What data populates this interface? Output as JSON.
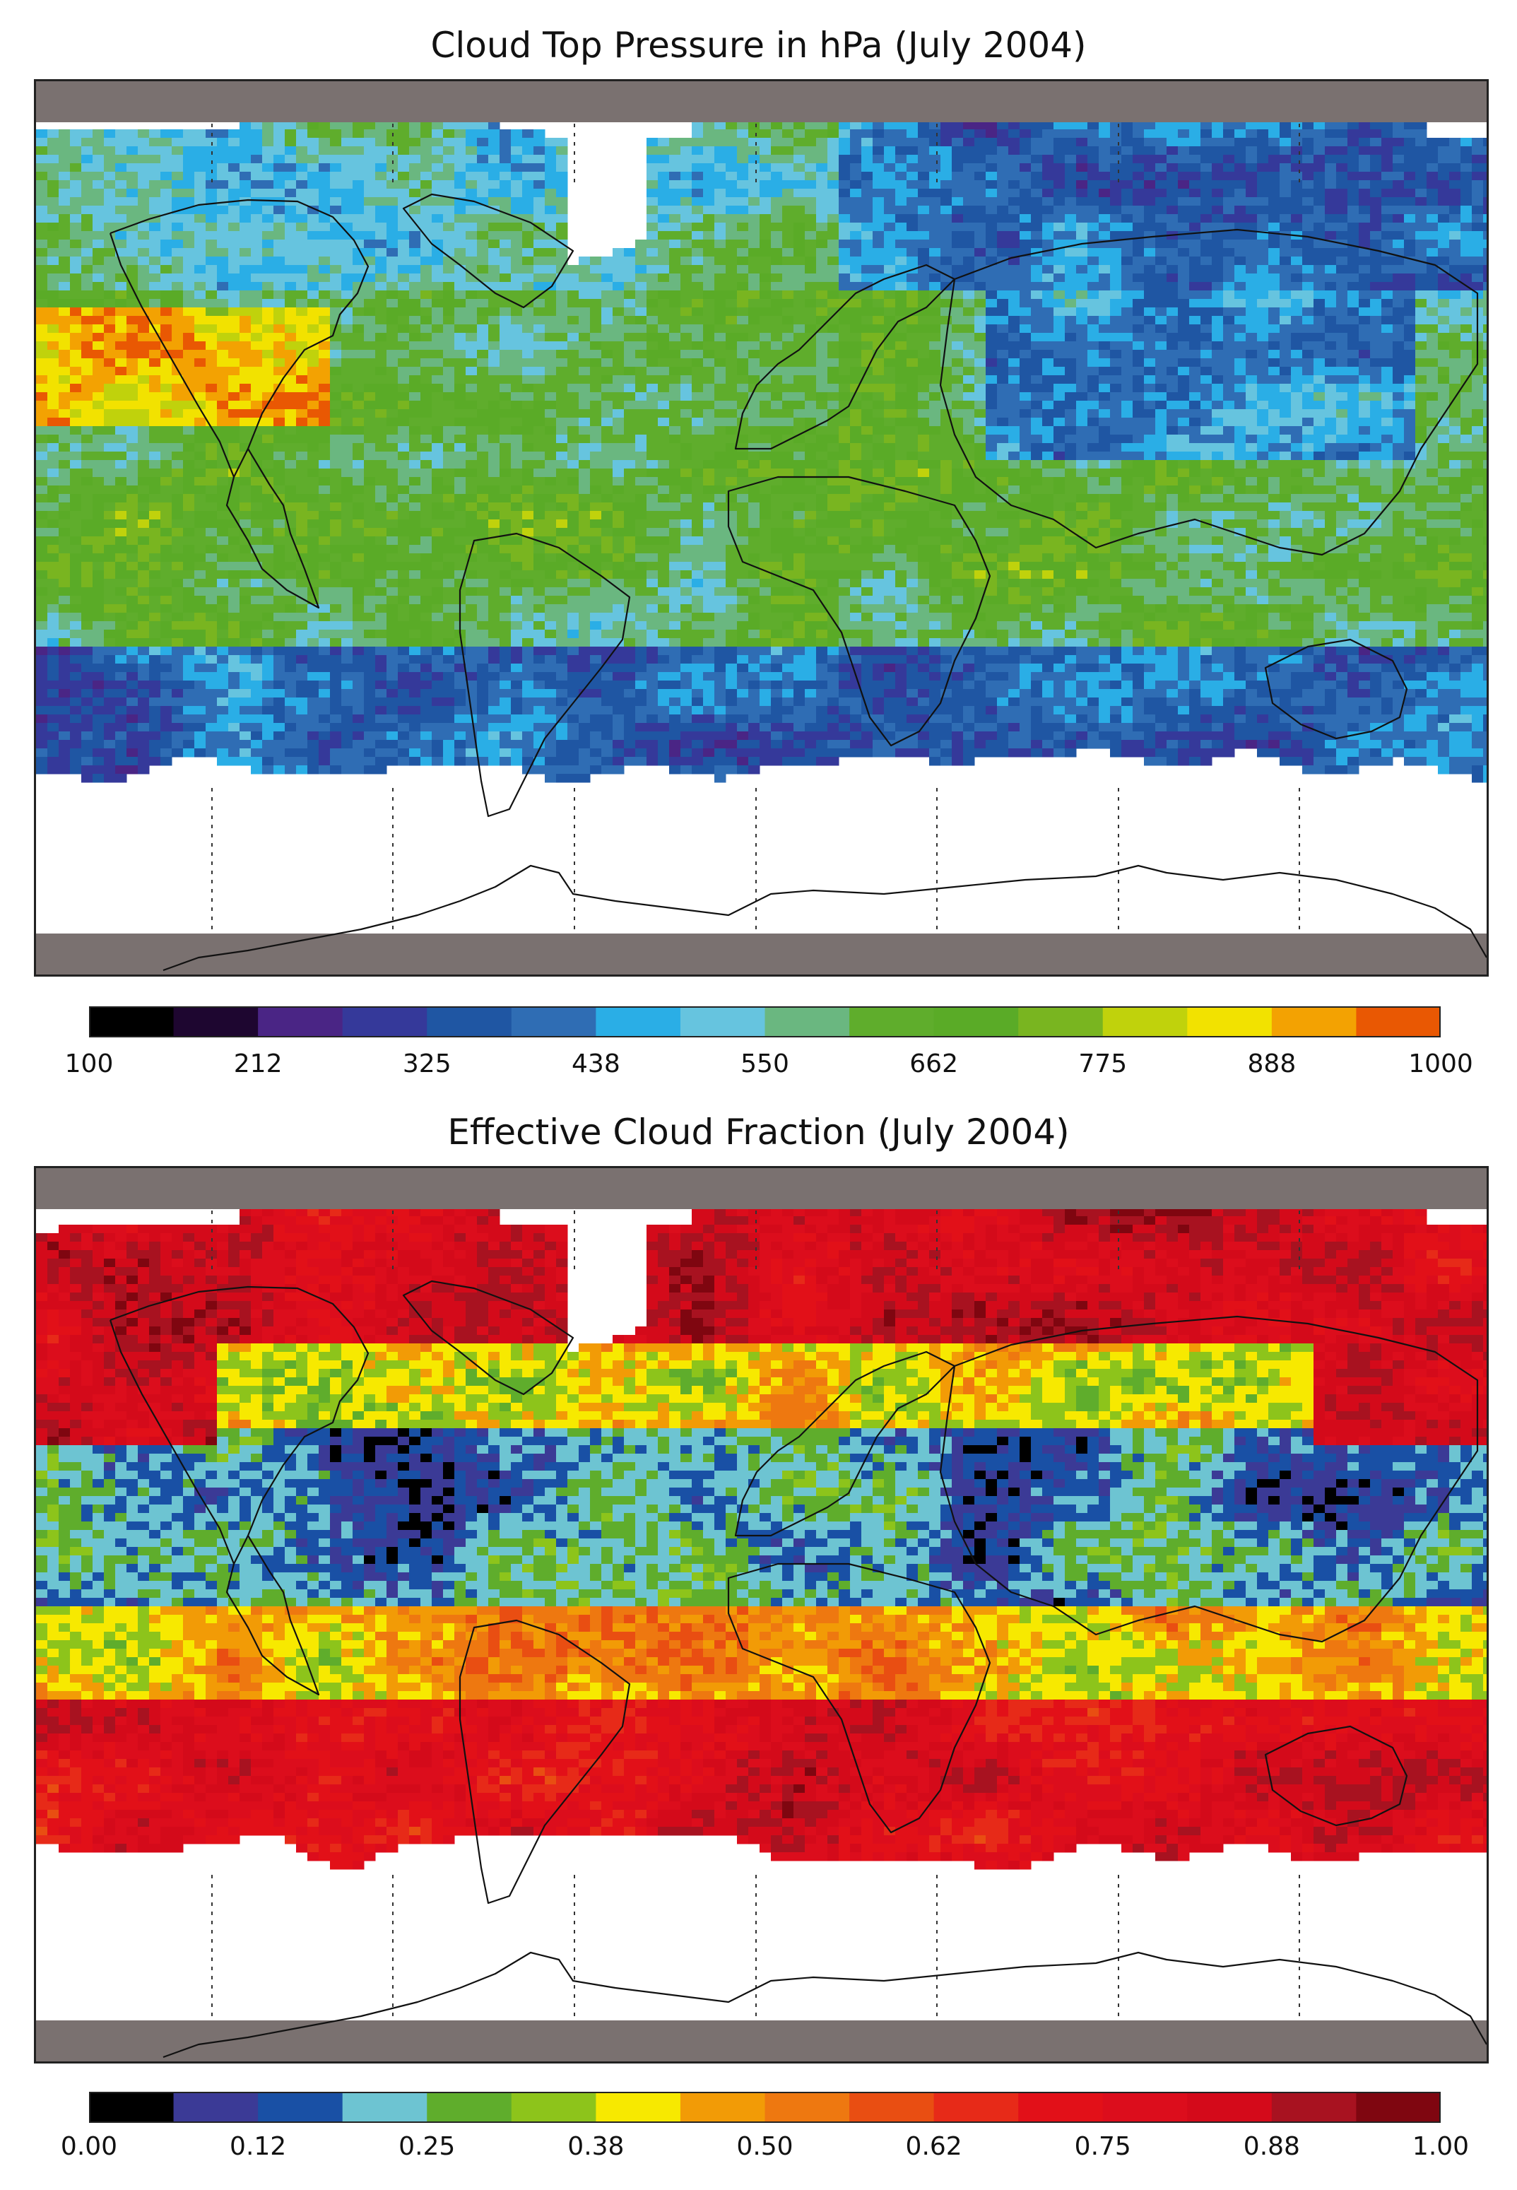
{
  "maps": [
    {
      "title": "Cloud Top Pressure in hPa (July 2004)",
      "colorbar": {
        "colors": [
          "#000000",
          "#1e0630",
          "#4a2585",
          "#35399a",
          "#1f56a3",
          "#2f6db4",
          "#2aaee6",
          "#66c4df",
          "#6ab780",
          "#5fad2c",
          "#5aab27",
          "#79b520",
          "#c0d20c",
          "#f2e200",
          "#f3a202",
          "#e95803"
        ],
        "tick_labels": [
          "100",
          "212",
          "325",
          "438",
          "550",
          "662",
          "775",
          "888",
          "1000"
        ]
      }
    },
    {
      "title": "Effective Cloud Fraction (July 2004)",
      "colorbar": {
        "colors": [
          "#000000",
          "#3b3a96",
          "#1950a5",
          "#6dc4d2",
          "#5fad2c",
          "#8dc41b",
          "#f7e900",
          "#f29b06",
          "#ee7810",
          "#e94e12",
          "#e72a18",
          "#e21018",
          "#dc0d1c",
          "#d40a1a",
          "#a81220",
          "#7f0610"
        ],
        "tick_labels": [
          "0.00",
          "0.12",
          "0.25",
          "0.38",
          "0.50",
          "0.62",
          "0.75",
          "0.88",
          "1.00"
        ]
      }
    }
  ],
  "frame": {
    "band_color": "#7a7170",
    "coast_color": "#111111"
  }
}
